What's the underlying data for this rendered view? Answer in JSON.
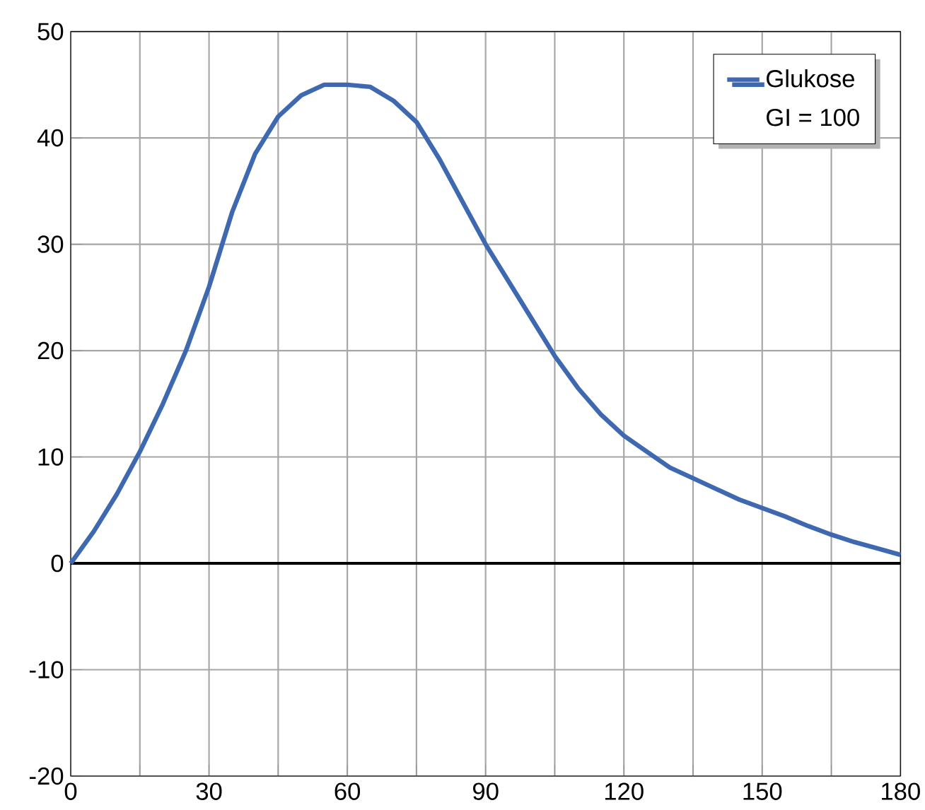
{
  "chart_data": {
    "type": "line",
    "annotations": [
      "GI = 100"
    ],
    "x": [
      0,
      5,
      10,
      15,
      20,
      25,
      30,
      35,
      40,
      45,
      50,
      55,
      60,
      65,
      70,
      75,
      80,
      85,
      90,
      95,
      100,
      105,
      110,
      115,
      120,
      125,
      130,
      135,
      140,
      145,
      150,
      155,
      160,
      165,
      170,
      175,
      180
    ],
    "series": [
      {
        "name": "Glukose",
        "color": "#3e68b0",
        "values": [
          0,
          3,
          6.5,
          10.5,
          15,
          20,
          26,
          33,
          38.5,
          42,
          44,
          45,
          45,
          44.8,
          43.5,
          41.5,
          38,
          34,
          30,
          26.5,
          23,
          19.5,
          16.5,
          14,
          12,
          10.5,
          9,
          8,
          7,
          6,
          5.2,
          4.4,
          3.5,
          2.7,
          2,
          1.4,
          0.8
        ]
      }
    ],
    "xlim": [
      0,
      180
    ],
    "ylim": [
      -20,
      50
    ],
    "xticks": [
      0,
      {
        "value": 15,
        "label": null
      },
      30,
      {
        "value": 45,
        "label": null
      },
      60,
      {
        "value": 75,
        "label": null
      },
      90,
      {
        "value": 105,
        "label": null
      },
      120,
      {
        "value": 135,
        "label": null
      },
      150,
      {
        "value": 165,
        "label": null
      },
      180
    ],
    "yticks": [
      -20,
      -10,
      0,
      10,
      20,
      30,
      40,
      50
    ],
    "ref_lines": [
      {
        "axis": "y",
        "value": 0,
        "color": "#000000"
      }
    ],
    "grid": true,
    "legend": "top right",
    "marker": "none",
    "line_style": "solid"
  }
}
